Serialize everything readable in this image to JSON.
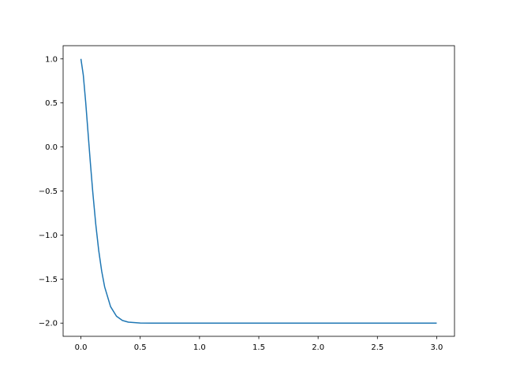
{
  "chart_data": {
    "type": "line",
    "title": "",
    "xlabel": "",
    "ylabel": "",
    "xlim": [
      -0.15,
      3.15
    ],
    "ylim": [
      -2.15,
      1.15
    ],
    "grid": false,
    "xticks": [
      0.0,
      0.5,
      1.0,
      1.5,
      2.0,
      2.5,
      3.0
    ],
    "xtick_labels": [
      "0.0",
      "0.5",
      "1.0",
      "1.5",
      "2.0",
      "2.5",
      "3.0"
    ],
    "yticks": [
      1.0,
      0.5,
      0.0,
      -0.5,
      -1.0,
      -1.5,
      -2.0
    ],
    "ytick_labels": [
      "1.0",
      "0.5",
      "0.0",
      "−0.5",
      "−1.0",
      "−1.5",
      "−2.0"
    ],
    "series": [
      {
        "color": "#1f77b4",
        "x": [
          0,
          0.02,
          0.04,
          0.06,
          0.08,
          0.1,
          0.125,
          0.15,
          0.175,
          0.2,
          0.25,
          0.3,
          0.35,
          0.4,
          0.5,
          0.6,
          0.8,
          1.0,
          1.5,
          2.0,
          2.5,
          3.0
        ],
        "y": [
          1.0,
          0.817,
          0.512,
          0.165,
          -0.185,
          -0.513,
          -0.875,
          -1.174,
          -1.409,
          -1.588,
          -1.813,
          -1.922,
          -1.97,
          -1.989,
          -1.999,
          -2.0,
          -2.0,
          -2.0,
          -2.0,
          -2.0,
          -2.0,
          -2.0
        ]
      }
    ]
  }
}
